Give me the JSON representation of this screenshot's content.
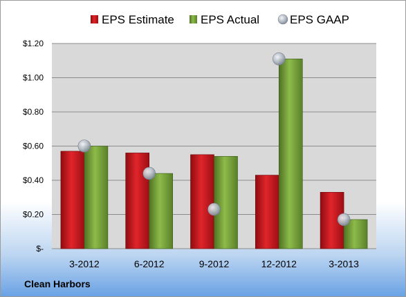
{
  "company_label": "Clean Harbors",
  "colors": {
    "estimate": "#c8161d",
    "actual": "#77a23b",
    "gaap": "#b4bcc6",
    "plot_bg": "#d9d9d9"
  },
  "chart_data": {
    "type": "bar",
    "categories": [
      "3-2012",
      "6-2012",
      "9-2012",
      "12-2012",
      "3-2013"
    ],
    "series": [
      {
        "name": "EPS Estimate",
        "kind": "bar",
        "values": [
          0.57,
          0.56,
          0.55,
          0.43,
          0.33
        ]
      },
      {
        "name": "EPS Actual",
        "kind": "bar",
        "values": [
          0.6,
          0.44,
          0.54,
          1.11,
          0.17
        ]
      },
      {
        "name": "EPS GAAP",
        "kind": "scatter",
        "values": [
          0.6,
          0.44,
          0.23,
          1.11,
          0.17
        ]
      }
    ],
    "ylim": [
      0,
      1.2
    ],
    "yticks": [
      0,
      0.2,
      0.4,
      0.6,
      0.8,
      1.0,
      1.2
    ],
    "ytick_labels": [
      "$-",
      "$0.20",
      "$0.40",
      "$0.60",
      "$0.80",
      "$1.00",
      "$1.20"
    ],
    "grid": true,
    "legend_position": "top"
  }
}
